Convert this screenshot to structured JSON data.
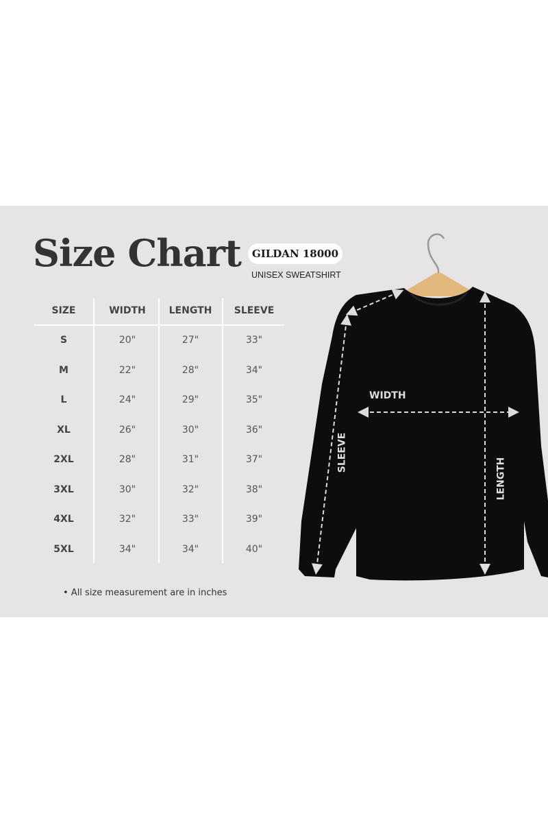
{
  "title": "Size Chart",
  "badge": "GILDAN 18000",
  "subtitle": "UNISEX SWEATSHIRT",
  "table": {
    "headers": [
      "SIZE",
      "WIDTH",
      "LENGTH",
      "SLEEVE"
    ],
    "rows": [
      [
        "S",
        "20\"",
        "27\"",
        "33\""
      ],
      [
        "M",
        "22\"",
        "28\"",
        "34\""
      ],
      [
        "L",
        "24\"",
        "29\"",
        "35\""
      ],
      [
        "XL",
        "26\"",
        "30\"",
        "36\""
      ],
      [
        "2XL",
        "28\"",
        "31\"",
        "37\""
      ],
      [
        "3XL",
        "30\"",
        "32\"",
        "38\""
      ],
      [
        "4XL",
        "32\"",
        "33\"",
        "39\""
      ],
      [
        "5XL",
        "34\"",
        "34\"",
        "40\""
      ]
    ]
  },
  "note": "• All size measurement are in inches",
  "diagram": {
    "width_label": "WIDTH",
    "sleeve_label": "SLEEVE",
    "length_label": "LENGTH"
  },
  "colors": {
    "panel": "#e6e4e5",
    "text": "#333333",
    "garment": "#0d0d0d",
    "hanger": "#e2b87f"
  }
}
